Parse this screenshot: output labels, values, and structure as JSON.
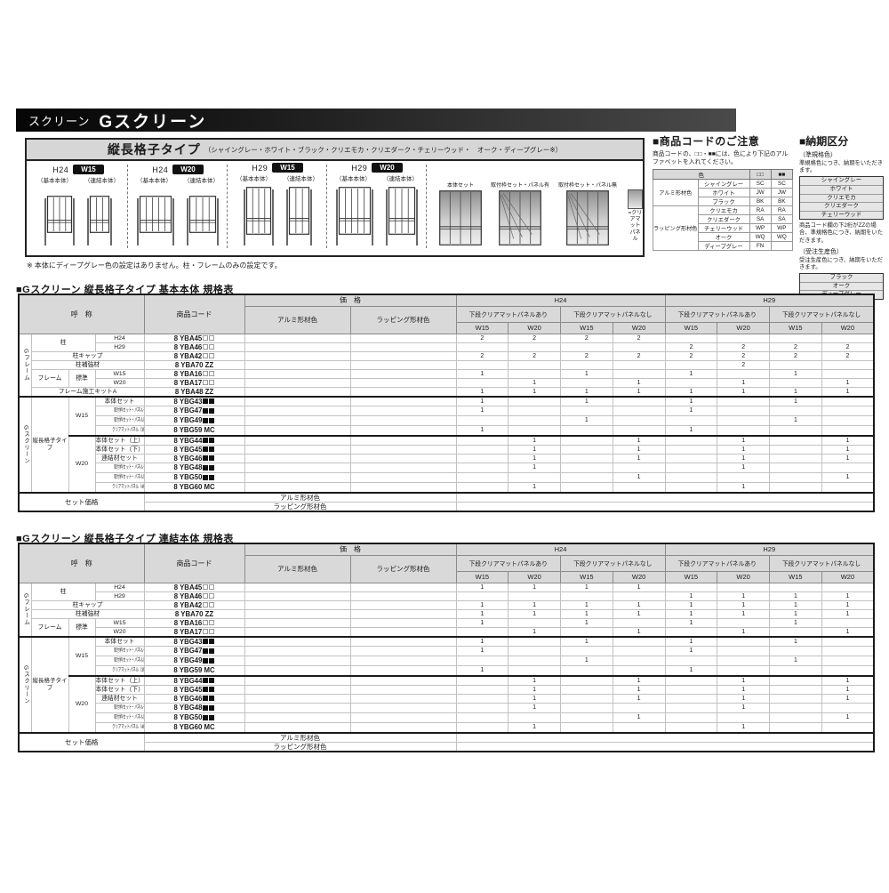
{
  "page_header": {
    "prefix": "スクリーン",
    "title": "Gスクリーン"
  },
  "panel": {
    "header_title": "縦長格子タイプ",
    "header_colors": "（シャイングレー・ホワイト・ブラック・クリエモカ・クリエダーク・チェリーウッド・　オーク・ディープグレー※）",
    "groups": [
      {
        "h": "H24",
        "w": "W15",
        "base": "（基本本体）",
        "joint": "（連結本体）"
      },
      {
        "h": "H24",
        "w": "W20",
        "base": "（基本本体）",
        "joint": "（連結本体）"
      },
      {
        "h": "H29",
        "w": "W15",
        "base": "（基本本体）",
        "joint": "（連結本体）"
      },
      {
        "h": "H29",
        "w": "W20",
        "base": "（基本本体）",
        "joint": "（連結本体）"
      }
    ],
    "set_labels": [
      "本体セット",
      "取付枠セット・パネル有",
      "取付枠セット・パネル無"
    ],
    "legend": "=クリアマット\nパネル",
    "note": "※ 本体にディープグレー色の設定はありません。柱・フレームのみの設定です。"
  },
  "code_notice": {
    "title": "■商品コードのご注意",
    "desc": "商品コードの、□□・■■には、色により下記のアルファベットを入れてください。",
    "headers": {
      "color": "色",
      "open": "□□",
      "filled": "■■"
    },
    "groups": [
      {
        "label": "アルミ形材色",
        "rows": [
          [
            "シャイングレー",
            "SC",
            "SC"
          ],
          [
            "ホワイト",
            "JW",
            "JW"
          ],
          [
            "ブラック",
            "BK",
            "BK"
          ]
        ]
      },
      {
        "label": "ラッピング形材色",
        "rows": [
          [
            "クリエモカ",
            "RA",
            "RA"
          ],
          [
            "クリエダーク",
            "SA",
            "SA"
          ],
          [
            "チェリーウッド",
            "WP",
            "WP"
          ],
          [
            "オーク",
            "WQ",
            "WQ"
          ],
          [
            "ディープグレー",
            "FN",
            ""
          ]
        ]
      }
    ]
  },
  "delivery": {
    "title": "■納期区分",
    "semi_label": "（準規格色）",
    "semi_text": "準規格色につき、納期をいただきます。",
    "semi_colors": [
      "シャイングレー",
      "ホワイト",
      "クリエモカ",
      "クリエダーク",
      "チェリーウッド"
    ],
    "zz_note": "商品コード欄の下2桁がZZの場合、準規格色につき、納期をいただきます。",
    "order_label": "（受注生産色）",
    "order_text": "受注生産色につき、納期をいただきます。",
    "order_colors": [
      "ブラック",
      "オーク",
      "ディープグレー"
    ]
  },
  "spec_headers": {
    "name": "呼　称",
    "code": "商品コード",
    "price": "価　格",
    "alumi": "アルミ形材色",
    "wrap": "ラッピング形材色",
    "h24": "H24",
    "h29": "H29",
    "with_panel": "下段クリアマットパネルあり",
    "without_panel": "下段クリアマットパネルなし",
    "w15": "W15",
    "w20": "W20"
  },
  "set_price": {
    "label": "セット価格",
    "alumi": "アルミ形材色",
    "wrap": "ラッピング形材色"
  },
  "spec_tables": [
    {
      "title": "■Gスクリーン 縦長格子タイプ 基本本体 規格表",
      "rows": [
        {
          "cells": [
            {
              "t": "Gフレーム",
              "rs": 7,
              "v": true
            },
            {
              "t": "柱",
              "rs": 2,
              "cs": 2
            },
            {
              "t": "H24"
            }
          ],
          "code": "8 YBA45",
          "sfx": "open",
          "qty": [
            "2",
            "2",
            "2",
            "2",
            "",
            "",
            "",
            ""
          ]
        },
        {
          "cells": [
            {
              "t": "H29"
            }
          ],
          "code": "8 YBA46",
          "sfx": "open",
          "qty": [
            "",
            "",
            "",
            "",
            "2",
            "2",
            "2",
            "2"
          ]
        },
        {
          "cells": [
            {
              "t": "柱キャップ",
              "cs": 3
            }
          ],
          "code": "8 YBA42",
          "sfx": "open",
          "qty": [
            "2",
            "2",
            "2",
            "2",
            "2",
            "2",
            "2",
            "2"
          ]
        },
        {
          "cells": [
            {
              "t": "柱補強材",
              "cs": 3
            }
          ],
          "code": "8 YBA70 ZZ",
          "sfx": "",
          "qty": [
            "",
            "",
            "",
            "",
            "",
            "2",
            "",
            ""
          ]
        },
        {
          "cells": [
            {
              "t": "フレーム",
              "rs": 2
            },
            {
              "t": "標準",
              "rs": 2
            },
            {
              "t": "W15"
            }
          ],
          "code": "8 YBA16",
          "sfx": "open",
          "qty": [
            "1",
            "",
            "1",
            "",
            "1",
            "",
            "1",
            ""
          ]
        },
        {
          "cells": [
            {
              "t": "W20"
            }
          ],
          "code": "8 YBA17",
          "sfx": "open",
          "qty": [
            "",
            "1",
            "",
            "1",
            "",
            "1",
            "",
            "1"
          ]
        },
        {
          "cells": [
            {
              "t": "フレーム施工キットA",
              "cs": 3
            }
          ],
          "code": "8 YBA48 ZZ",
          "sfx": "",
          "qty": [
            "1",
            "1",
            "1",
            "1",
            "1",
            "1",
            "1",
            "1"
          ]
        },
        {
          "sep": true,
          "cells": [
            {
              "t": "Gスクリーン",
              "rs": 10,
              "v": true
            },
            {
              "t": "縦長格子タイプ",
              "rs": 10,
              "w2": true
            },
            {
              "t": "W15",
              "rs": 4
            },
            {
              "t": "本体セット"
            }
          ],
          "code": "8 YBG43",
          "sfx": "filled",
          "qty": [
            "1",
            "",
            "1",
            "",
            "1",
            "",
            "1",
            ""
          ]
        },
        {
          "cells": [
            {
              "t": "取付枠セット・パネル有（下段）"
            }
          ],
          "code": "8 YBG47",
          "sfx": "filled",
          "qty": [
            "1",
            "",
            "",
            "",
            "1",
            "",
            "",
            ""
          ]
        },
        {
          "cells": [
            {
              "t": "取付枠セット・パネル無（下段）"
            }
          ],
          "code": "8 YBG49",
          "sfx": "filled",
          "qty": [
            "",
            "",
            "1",
            "",
            "",
            "",
            "1",
            ""
          ]
        },
        {
          "cells": [
            {
              "t": "クリアマットパネル（3枚入）"
            }
          ],
          "code": "8 YBG59 MC",
          "sfx": "",
          "qty": [
            "1",
            "",
            "",
            "",
            "1",
            "",
            "",
            ""
          ]
        },
        {
          "sep": true,
          "cells": [
            {
              "t": "W20",
              "rs": 6
            },
            {
              "t": "本体セット（上）"
            }
          ],
          "code": "8 YBG44",
          "sfx": "filled",
          "qty": [
            "",
            "1",
            "",
            "1",
            "",
            "1",
            "",
            "1"
          ]
        },
        {
          "cells": [
            {
              "t": "本体セット（下）"
            }
          ],
          "code": "8 YBG45",
          "sfx": "filled",
          "qty": [
            "",
            "1",
            "",
            "1",
            "",
            "1",
            "",
            "1"
          ]
        },
        {
          "cells": [
            {
              "t": "連結材セット"
            }
          ],
          "code": "8 YBG46",
          "sfx": "filled",
          "qty": [
            "",
            "1",
            "",
            "1",
            "",
            "1",
            "",
            "1"
          ]
        },
        {
          "cells": [
            {
              "t": "取付枠セット・パネル有（下段）"
            }
          ],
          "code": "8 YBG48",
          "sfx": "filled",
          "qty": [
            "",
            "1",
            "",
            "",
            "",
            "1",
            "",
            ""
          ]
        },
        {
          "cells": [
            {
              "t": "取付枠セット・パネル無（下段）"
            }
          ],
          "code": "8 YBG50",
          "sfx": "filled",
          "qty": [
            "",
            "",
            "",
            "1",
            "",
            "",
            "",
            "1"
          ]
        },
        {
          "cells": [
            {
              "t": "クリアマットパネル（4枚入）"
            }
          ],
          "code": "8 YBG60 MC",
          "sfx": "",
          "qty": [
            "",
            "1",
            "",
            "",
            "",
            "1",
            "",
            ""
          ]
        }
      ]
    },
    {
      "title": "■Gスクリーン 縦長格子タイプ 連結本体 規格表",
      "rows": [
        {
          "cells": [
            {
              "t": "Gフレーム",
              "rs": 6,
              "v": true
            },
            {
              "t": "柱",
              "rs": 2,
              "cs": 2
            },
            {
              "t": "H24"
            }
          ],
          "code": "8 YBA45",
          "sfx": "open",
          "qty": [
            "1",
            "1",
            "1",
            "1",
            "",
            "",
            "",
            ""
          ]
        },
        {
          "cells": [
            {
              "t": "H29"
            }
          ],
          "code": "8 YBA46",
          "sfx": "open",
          "qty": [
            "",
            "",
            "",
            "",
            "1",
            "1",
            "1",
            "1"
          ]
        },
        {
          "cells": [
            {
              "t": "柱キャップ",
              "cs": 3
            }
          ],
          "code": "8 YBA42",
          "sfx": "open",
          "qty": [
            "1",
            "1",
            "1",
            "1",
            "1",
            "1",
            "1",
            "1"
          ]
        },
        {
          "cells": [
            {
              "t": "柱補強材",
              "cs": 3
            }
          ],
          "code": "8 YBA70 ZZ",
          "sfx": "",
          "qty": [
            "1",
            "1",
            "1",
            "1",
            "1",
            "1",
            "1",
            "1"
          ]
        },
        {
          "cells": [
            {
              "t": "フレーム",
              "rs": 2
            },
            {
              "t": "標準",
              "rs": 2
            },
            {
              "t": "W15"
            }
          ],
          "code": "8 YBA16",
          "sfx": "open",
          "qty": [
            "1",
            "",
            "1",
            "",
            "1",
            "",
            "1",
            ""
          ]
        },
        {
          "cells": [
            {
              "t": "W20"
            }
          ],
          "code": "8 YBA17",
          "sfx": "open",
          "qty": [
            "",
            "1",
            "",
            "1",
            "",
            "1",
            "",
            "1"
          ]
        },
        {
          "sep": true,
          "cells": [
            {
              "t": "Gスクリーン",
              "rs": 10,
              "v": true
            },
            {
              "t": "縦長格子タイプ",
              "rs": 10,
              "w2": true
            },
            {
              "t": "W15",
              "rs": 4
            },
            {
              "t": "本体セット"
            }
          ],
          "code": "8 YBG43",
          "sfx": "filled",
          "qty": [
            "1",
            "",
            "1",
            "",
            "1",
            "",
            "1",
            ""
          ]
        },
        {
          "cells": [
            {
              "t": "取付枠セット・パネル有（下段）"
            }
          ],
          "code": "8 YBG47",
          "sfx": "filled",
          "qty": [
            "1",
            "",
            "",
            "",
            "1",
            "",
            "",
            ""
          ]
        },
        {
          "cells": [
            {
              "t": "取付枠セット・パネル無（下段）"
            }
          ],
          "code": "8 YBG49",
          "sfx": "filled",
          "qty": [
            "",
            "",
            "1",
            "",
            "",
            "",
            "1",
            ""
          ]
        },
        {
          "cells": [
            {
              "t": "クリアマットパネル（3枚入）"
            }
          ],
          "code": "8 YBG59 MC",
          "sfx": "",
          "qty": [
            "1",
            "",
            "",
            "",
            "1",
            "",
            "",
            ""
          ]
        },
        {
          "sep": true,
          "cells": [
            {
              "t": "W20",
              "rs": 6
            },
            {
              "t": "本体セット（上）"
            }
          ],
          "code": "8 YBG44",
          "sfx": "filled",
          "qty": [
            "",
            "1",
            "",
            "1",
            "",
            "1",
            "",
            "1"
          ]
        },
        {
          "cells": [
            {
              "t": "本体セット（下）"
            }
          ],
          "code": "8 YBG45",
          "sfx": "filled",
          "qty": [
            "",
            "1",
            "",
            "1",
            "",
            "1",
            "",
            "1"
          ]
        },
        {
          "cells": [
            {
              "t": "連結材セット"
            }
          ],
          "code": "8 YBG46",
          "sfx": "filled",
          "qty": [
            "",
            "1",
            "",
            "1",
            "",
            "1",
            "",
            "1"
          ]
        },
        {
          "cells": [
            {
              "t": "取付枠セット・パネル有（下段）"
            }
          ],
          "code": "8 YBG48",
          "sfx": "filled",
          "qty": [
            "",
            "1",
            "",
            "",
            "",
            "1",
            "",
            ""
          ]
        },
        {
          "cells": [
            {
              "t": "取付枠セット・パネル無（下段）"
            }
          ],
          "code": "8 YBG50",
          "sfx": "filled",
          "qty": [
            "",
            "",
            "",
            "1",
            "",
            "",
            "",
            "1"
          ]
        },
        {
          "cells": [
            {
              "t": "クリアマットパネル（4枚入）"
            }
          ],
          "code": "8 YBG60 MC",
          "sfx": "",
          "qty": [
            "",
            "1",
            "",
            "",
            "",
            "1",
            "",
            ""
          ]
        }
      ]
    }
  ],
  "colors": {
    "accent_black": "#1a1a1a",
    "header_gray": "#d9d9d9",
    "bar_gradient_start": "#050505",
    "bar_gradient_end": "#4a4a4a"
  }
}
